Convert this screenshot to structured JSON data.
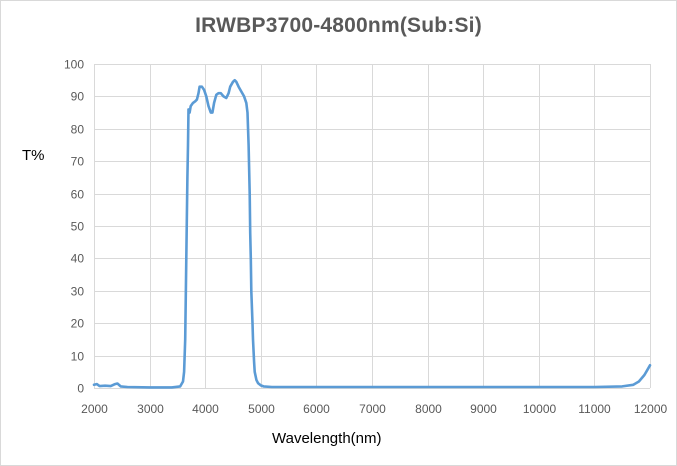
{
  "chart_data": {
    "type": "line",
    "title": "IRWBP3700-4800nm(Sub:Si)",
    "xlabel": "Wavelength(nm)",
    "ylabel": "T%",
    "xlim": [
      2000,
      12000
    ],
    "ylim": [
      0,
      100
    ],
    "x_ticks": [
      2000,
      3000,
      4000,
      5000,
      6000,
      7000,
      8000,
      9000,
      10000,
      11000,
      12000
    ],
    "y_ticks": [
      0,
      10,
      20,
      30,
      40,
      50,
      60,
      70,
      80,
      90,
      100
    ],
    "grid": true,
    "legend": null,
    "series": [
      {
        "name": "T%",
        "color": "#5b9bd5",
        "x": [
          2000,
          2050,
          2100,
          2200,
          2300,
          2380,
          2420,
          2480,
          2600,
          3000,
          3400,
          3550,
          3600,
          3620,
          3640,
          3660,
          3680,
          3690,
          3700,
          3720,
          3740,
          3780,
          3820,
          3850,
          3880,
          3900,
          3940,
          3980,
          4020,
          4060,
          4100,
          4130,
          4160,
          4200,
          4240,
          4280,
          4330,
          4380,
          4420,
          4450,
          4500,
          4530,
          4560,
          4600,
          4650,
          4700,
          4740,
          4760,
          4780,
          4800,
          4810,
          4820,
          4830,
          4850,
          4860,
          4880,
          4890,
          4920,
          4950,
          5000,
          5050,
          5200,
          6000,
          7000,
          8000,
          9000,
          10000,
          11000,
          11500,
          11700,
          11800,
          11900,
          11950,
          12000
        ],
        "y": [
          1.0,
          1.2,
          0.6,
          0.7,
          0.6,
          1.2,
          1.4,
          0.5,
          0.3,
          0.2,
          0.2,
          0.5,
          2,
          5,
          15,
          40,
          65,
          75,
          86,
          85,
          87,
          88,
          88.5,
          89,
          91,
          93,
          93,
          92,
          90,
          87,
          85,
          85,
          88,
          90.5,
          91,
          91,
          90,
          89.5,
          91,
          93,
          94.5,
          95,
          94.5,
          93,
          91.5,
          90,
          88,
          85,
          75,
          60,
          48,
          40,
          30,
          20,
          15,
          8,
          5,
          2.5,
          1.5,
          0.8,
          0.5,
          0.3,
          0.3,
          0.3,
          0.3,
          0.3,
          0.3,
          0.3,
          0.5,
          1.0,
          2.0,
          4.0,
          5.5,
          7.0
        ]
      }
    ]
  },
  "plot": {
    "grid_color": "#d9d9d9",
    "line_color": "#5b9bd5"
  }
}
